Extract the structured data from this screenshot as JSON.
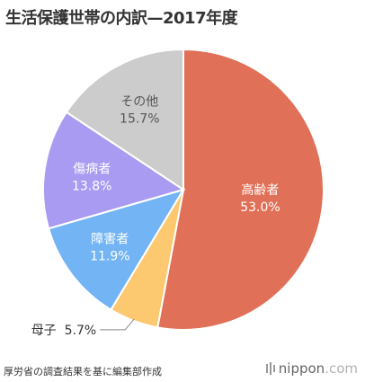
{
  "chart_data": {
    "type": "pie",
    "title": "生活保護世帯の内訳—2017年度",
    "start_angle_deg": 0,
    "direction": "clockwise",
    "slices": [
      {
        "label": "高齢者",
        "value_text": "53.0%",
        "value": 53.0,
        "color": "#e07057",
        "label_color": "#ffffff"
      },
      {
        "label": "母子",
        "value_text": "5.7%",
        "value": 5.7,
        "color": "#fcc870",
        "label_color": "#333333",
        "label_outside": true
      },
      {
        "label": "障害者",
        "value_text": "11.9%",
        "value": 11.9,
        "color": "#73b4f5",
        "label_color": "#ffffff"
      },
      {
        "label": "傷病者",
        "value_text": "13.8%",
        "value": 13.8,
        "color": "#a99bf2",
        "label_color": "#ffffff"
      },
      {
        "label": "その他",
        "value_text": "15.7%",
        "value": 15.7,
        "color": "#cccccc",
        "label_color": "#555555"
      }
    ]
  },
  "source_note": "厚労省の調査結果を基に編集部作成",
  "brand": {
    "name": "nippon",
    "suffix": ".com"
  }
}
